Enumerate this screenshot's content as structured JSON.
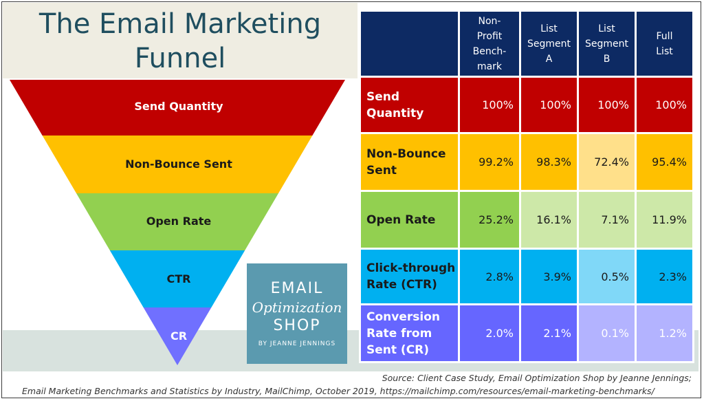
{
  "title": {
    "line1": "The Email Marketing",
    "line2": "Funnel"
  },
  "funnel": {
    "stages": [
      {
        "label": "Send Quantity",
        "color": "#c00000"
      },
      {
        "label": "Non-Bounce Sent",
        "color": "#ffc000"
      },
      {
        "label": "Open Rate",
        "color": "#92d050"
      },
      {
        "label": "CTR",
        "color": "#00b0f0"
      },
      {
        "label": "CR",
        "color": "#7070ff"
      }
    ]
  },
  "logo": {
    "line1": "EMAIL",
    "line2": "Optimization",
    "line3": "SHOP",
    "line4": "BY JEANNE JENNINGS"
  },
  "table": {
    "header_color": "#0d2a63",
    "columns": [
      "Non-Profit Bench-mark",
      "List Segment A",
      "List Segment B",
      "Full List"
    ],
    "column_lines": [
      [
        "Non-",
        "Profit",
        "Bench-",
        "mark"
      ],
      [
        "List",
        "Segment",
        "A"
      ],
      [
        "List",
        "Segment",
        "B"
      ],
      [
        "Full",
        "List"
      ]
    ],
    "rows": [
      {
        "label": "Send Quantity",
        "label_lines": [
          "Send Quantity"
        ],
        "values": [
          "100%",
          "100%",
          "100%",
          "100%"
        ],
        "label_color": "#c00000",
        "cell_colors": [
          "#c00000",
          "#c00000",
          "#c00000",
          "#c00000"
        ],
        "text_color": "#ffffff"
      },
      {
        "label": "Non-Bounce Sent",
        "label_lines": [
          "Non-Bounce",
          "Sent"
        ],
        "values": [
          "99.2%",
          "98.3%",
          "72.4%",
          "95.4%"
        ],
        "label_color": "#ffc000",
        "cell_colors": [
          "#ffc000",
          "#ffc000",
          "#ffe08a",
          "#ffc000"
        ],
        "text_color": "#1a1a1a"
      },
      {
        "label": "Open Rate",
        "label_lines": [
          "Open Rate"
        ],
        "values": [
          "25.2%",
          "16.1%",
          "7.1%",
          "11.9%"
        ],
        "label_color": "#92d050",
        "cell_colors": [
          "#92d050",
          "#cde8a8",
          "#cde8a8",
          "#cde8a8"
        ],
        "text_color": "#1a1a1a"
      },
      {
        "label": "Click-through Rate (CTR)",
        "label_lines": [
          "Click-through",
          "Rate (CTR)"
        ],
        "values": [
          "2.8%",
          "3.9%",
          "0.5%",
          "2.3%"
        ],
        "label_color": "#00b0f0",
        "cell_colors": [
          "#00b0f0",
          "#00b0f0",
          "#80d8f8",
          "#00b0f0"
        ],
        "text_color": "#1a1a1a"
      },
      {
        "label": "Conversion Rate from Sent (CR)",
        "label_lines": [
          "Conversion",
          "Rate from",
          "Sent (CR)"
        ],
        "values": [
          "2.0%",
          "2.1%",
          "0.1%",
          "1.2%"
        ],
        "label_color": "#6666ff",
        "cell_colors": [
          "#6666ff",
          "#6666ff",
          "#b3b3ff",
          "#b3b3ff"
        ],
        "text_color": "#ffffff"
      }
    ]
  },
  "source": {
    "line1": "Source: Client Case Study, Email Optimization Shop by Jeanne Jennings;",
    "line2": "Email Marketing Benchmarks and Statistics by Industry, MailChimp, October 2019, https://mailchimp.com/resources/email-marketing-benchmarks/"
  }
}
